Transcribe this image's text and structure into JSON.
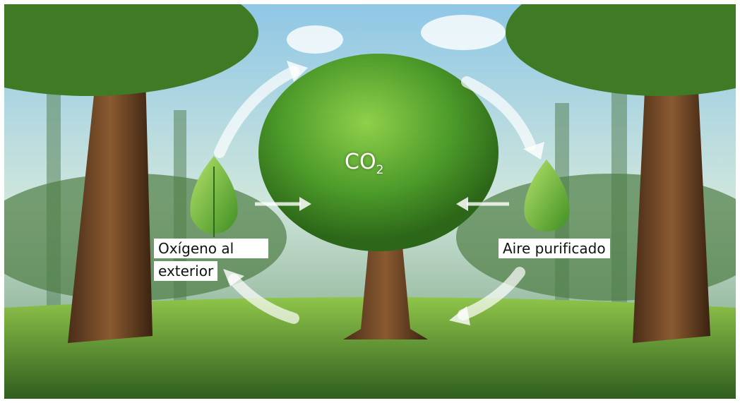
{
  "co2": {
    "base": "CO",
    "sub": "2"
  },
  "oxygen_label": {
    "lines": [
      "Oxígeno al",
      "exterior"
    ]
  },
  "air_label": "Aire purificado"
}
